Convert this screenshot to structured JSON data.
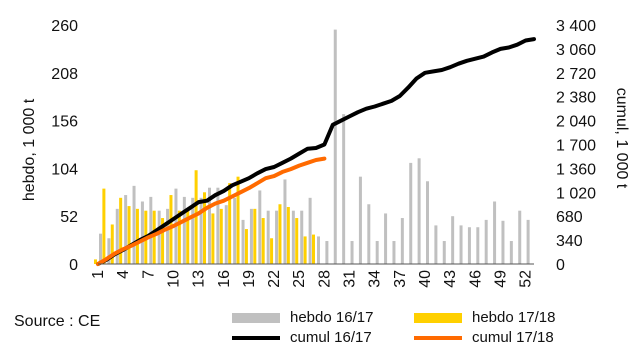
{
  "source_label": "Source : CE",
  "chart_data": {
    "type": "bar+line",
    "x_ticks": [
      1,
      4,
      7,
      10,
      13,
      16,
      19,
      22,
      25,
      28,
      31,
      34,
      37,
      40,
      43,
      46,
      49,
      52
    ],
    "ylabel_left": "hebdo, 1 000 t",
    "ylabel_right": "cumul, 1 000 t",
    "ylim_left": [
      0,
      260
    ],
    "ylim_right": [
      0,
      3400
    ],
    "yticks_left": [
      "0",
      "52",
      "104",
      "156",
      "208",
      "260"
    ],
    "yticks_right": [
      "0",
      "340",
      "680",
      "1 020",
      "1 360",
      "1 700",
      "2 040",
      "2 380",
      "2 720",
      "3 060",
      "3 400"
    ],
    "grid": false,
    "legend_position": "bottom",
    "colors": {
      "hebdo_1617": "#c0c0c0",
      "hebdo_1718": "#ffd000",
      "cumul_1617": "#000000",
      "cumul_1718": "#ff6a00"
    },
    "series": [
      {
        "name": "hebdo 16/17",
        "type": "bar",
        "axis": "left",
        "x": [
          1,
          2,
          3,
          4,
          5,
          6,
          7,
          8,
          9,
          10,
          11,
          12,
          13,
          14,
          15,
          16,
          17,
          18,
          19,
          20,
          21,
          22,
          23,
          24,
          25,
          26,
          27,
          28,
          29,
          30,
          31,
          32,
          33,
          34,
          35,
          36,
          37,
          38,
          39,
          40,
          41,
          42,
          43,
          44,
          45,
          46,
          47,
          48,
          49,
          50,
          51,
          52
        ],
        "values": [
          33,
          28,
          60,
          75,
          85,
          68,
          73,
          58,
          60,
          82,
          73,
          72,
          72,
          83,
          83,
          64,
          72,
          48,
          60,
          80,
          58,
          58,
          92,
          58,
          58,
          72,
          30,
          25,
          255,
          163,
          25,
          95,
          65,
          25,
          55,
          25,
          50,
          110,
          115,
          90,
          42,
          25,
          52,
          42,
          40,
          40,
          48,
          68,
          47,
          25,
          58,
          48
        ]
      },
      {
        "name": "hebdo 17/18",
        "type": "bar",
        "axis": "left",
        "x": [
          1,
          2,
          3,
          4,
          5,
          6,
          7,
          8,
          9,
          10,
          11,
          12,
          13,
          14,
          15,
          16,
          17,
          18,
          19,
          20,
          21,
          22,
          23,
          24,
          25,
          26,
          27
        ],
        "values": [
          5,
          82,
          43,
          72,
          63,
          60,
          58,
          58,
          50,
          75,
          58,
          60,
          102,
          78,
          55,
          60,
          88,
          95,
          38,
          60,
          50,
          28,
          65,
          62,
          50,
          30,
          32
        ]
      },
      {
        "name": "cumul 16/17",
        "type": "line",
        "axis": "right",
        "x": [
          1,
          2,
          3,
          4,
          5,
          6,
          7,
          8,
          9,
          10,
          11,
          12,
          13,
          14,
          15,
          16,
          17,
          18,
          19,
          20,
          21,
          22,
          23,
          24,
          25,
          26,
          27,
          28,
          29,
          30,
          31,
          32,
          33,
          34,
          35,
          36,
          37,
          38,
          39,
          40,
          41,
          42,
          43,
          44,
          45,
          46,
          47,
          48,
          49,
          50,
          51,
          52,
          53
        ],
        "values": [
          0,
          60,
          140,
          200,
          270,
          340,
          400,
          480,
          560,
          640,
          720,
          800,
          880,
          900,
          980,
          1040,
          1120,
          1170,
          1220,
          1290,
          1350,
          1380,
          1440,
          1500,
          1570,
          1640,
          1650,
          1700,
          1980,
          2040,
          2100,
          2160,
          2210,
          2240,
          2280,
          2320,
          2390,
          2510,
          2640,
          2720,
          2740,
          2760,
          2800,
          2850,
          2890,
          2920,
          2950,
          3010,
          3060,
          3080,
          3120,
          3180,
          3200
        ]
      },
      {
        "name": "cumul 17/18",
        "type": "line",
        "axis": "right",
        "x": [
          1,
          2,
          3,
          4,
          5,
          6,
          7,
          8,
          9,
          10,
          11,
          12,
          13,
          14,
          15,
          16,
          17,
          18,
          19,
          20,
          21,
          22,
          23,
          24,
          25,
          26,
          27,
          28
        ],
        "values": [
          0,
          70,
          150,
          210,
          260,
          320,
          380,
          430,
          490,
          540,
          600,
          660,
          720,
          800,
          860,
          900,
          960,
          1020,
          1080,
          1150,
          1220,
          1250,
          1310,
          1350,
          1400,
          1440,
          1480,
          1500
        ]
      }
    ]
  }
}
